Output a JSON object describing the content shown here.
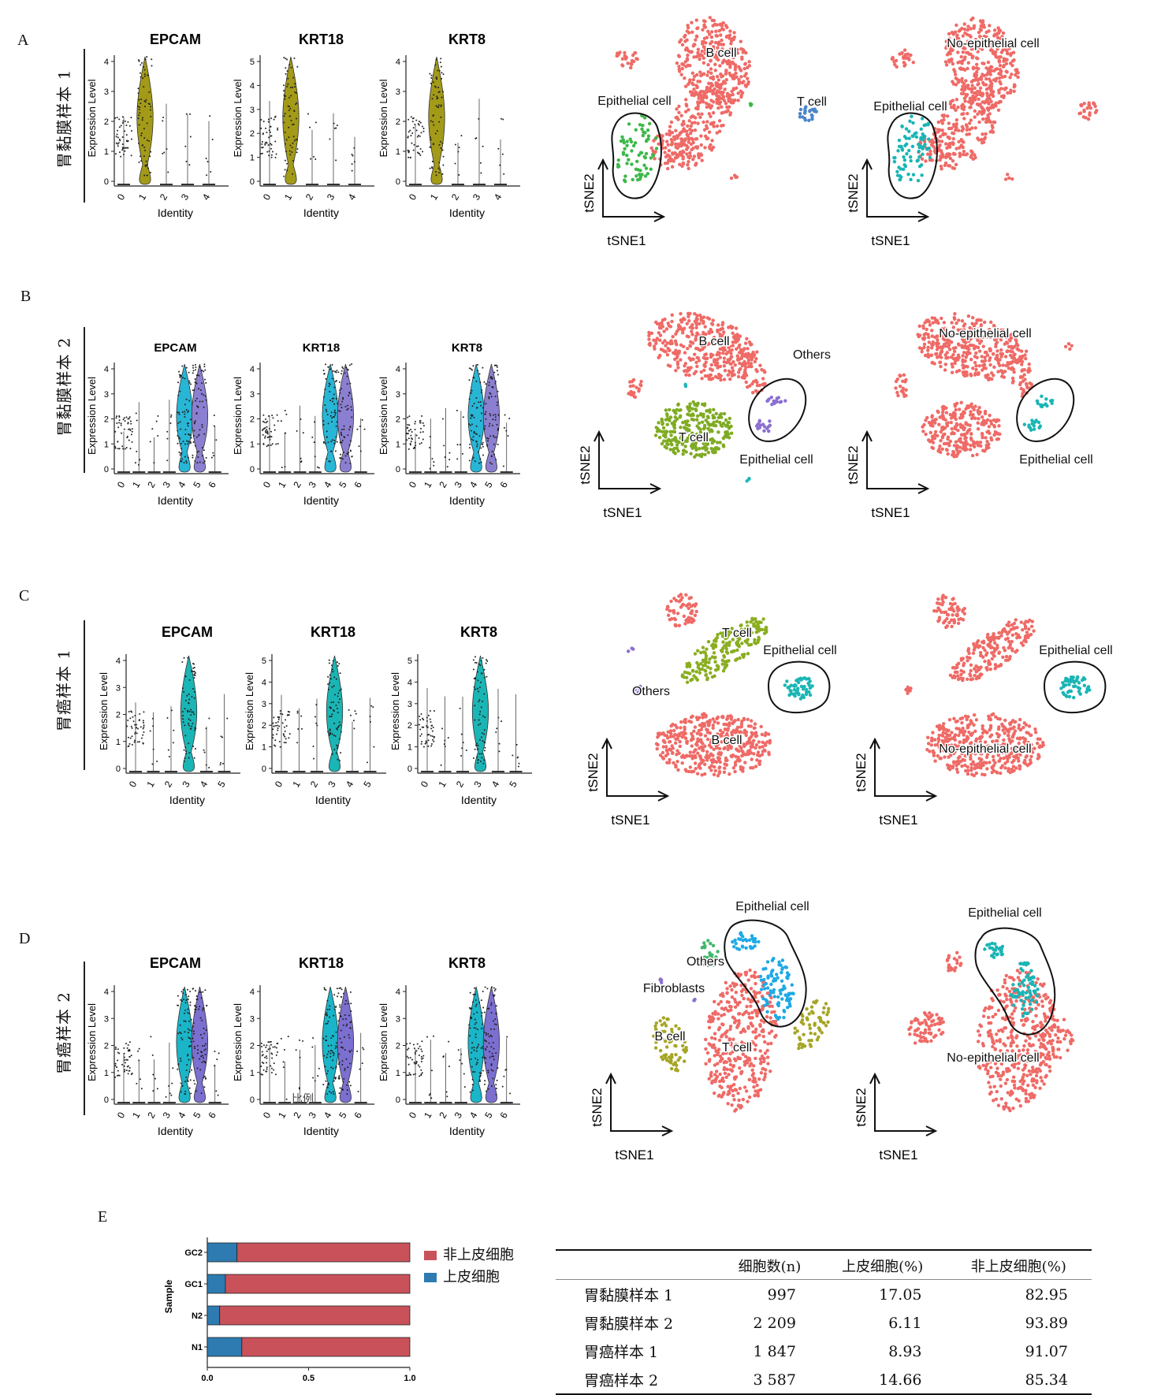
{
  "rows": [
    {
      "letter": "A",
      "label": "胃黏膜样本 1",
      "clusters": [
        "0",
        "1",
        "2",
        "3",
        "4"
      ],
      "color": "#a39a18",
      "highlight": [
        1
      ],
      "tsne_left": {
        "labels": [
          "B cell",
          "Epithelial cell",
          "T cell"
        ],
        "cluster_colors": {
          "b": "#ef6a66",
          "epi": "#3db84a",
          "t": "#4b86c9",
          "other": "#3db84a"
        }
      },
      "tsne_right": {
        "labels": [
          "No-epithelial cell",
          "Epithelial cell"
        ]
      }
    },
    {
      "letter": "B",
      "label": "胃黏膜样本 2",
      "clusters": [
        "0",
        "1",
        "2",
        "3",
        "4",
        "5",
        "6"
      ],
      "color": "#27b6d6",
      "color2": "#8b7fd1",
      "highlight": [
        4,
        5
      ],
      "tsne_left": {
        "labels": [
          "B cell",
          "Others",
          "T cell",
          "Epithelial cell"
        ],
        "cluster_colors": {
          "b": "#ef6a66",
          "epi": "#8b6fd0",
          "t": "#7fab23",
          "other": "#1fb7b7"
        }
      },
      "tsne_right": {
        "labels": [
          "No-epithelial cell",
          "Epithelial cell"
        ]
      }
    },
    {
      "letter": "C",
      "label": "胃癌样本 1",
      "clusters": [
        "0",
        "1",
        "2",
        "3",
        "4",
        "5"
      ],
      "color": "#1ab5b5",
      "highlight": [
        3
      ],
      "tsne_left": {
        "labels": [
          "T cell",
          "Epithelial cell",
          "Others",
          "B cell"
        ],
        "cluster_colors": {
          "b": "#ef6a66",
          "epi": "#1ab5b5",
          "t": "#8aae1f",
          "other": "#8b6fd0"
        }
      },
      "tsne_right": {
        "labels": [
          "Epithelial cell",
          "No-epithelial cell"
        ]
      }
    },
    {
      "letter": "D",
      "label": "胃癌样本 2",
      "clusters": [
        "0",
        "1",
        "2",
        "3",
        "4",
        "5",
        "6"
      ],
      "color": "#1ab5c8",
      "color2": "#7b6fd0",
      "highlight": [
        4,
        5
      ],
      "tsne_left": {
        "labels": [
          "Epithelial cell",
          "Others",
          "Fibroblasts",
          "B cell",
          "T cell"
        ],
        "cluster_colors": {
          "b": "#ef6a66",
          "epi": "#1ea9e6",
          "t": "#a6a526",
          "other": "#41b86a"
        }
      },
      "tsne_right": {
        "labels": [
          "Epithelial cell",
          "No-epithelial cell"
        ]
      }
    }
  ],
  "genes": [
    "EPCAM",
    "KRT18",
    "KRT8"
  ],
  "ylabel": "Expression Level",
  "xlabel": "Identity",
  "tsne_axes": {
    "x": "tSNE1",
    "y": "tSNE2"
  },
  "stray_text": "比例",
  "panel_e": {
    "letter": "E",
    "chart_data": {
      "type": "bar",
      "orientation": "horizontal-stacked",
      "categories": [
        "GC2",
        "GC1",
        "N2",
        "N1"
      ],
      "series": [
        {
          "name": "上皮细胞",
          "values": [
            0.1466,
            0.0893,
            0.0611,
            0.1705
          ]
        },
        {
          "name": "非上皮细胞",
          "values": [
            0.8534,
            0.9107,
            0.9389,
            0.8295
          ]
        }
      ],
      "ylabel": "Sample",
      "xticks": [
        "0.0",
        "0.5",
        "1.0"
      ],
      "xlim": [
        0,
        1
      ],
      "legend_position": "right",
      "colors": {
        "上皮细胞": "#2d7bb0",
        "非上皮细胞": "#c9525a"
      }
    },
    "legend": [
      "非上皮细胞",
      "上皮细胞"
    ],
    "table": {
      "headers": [
        "",
        "细胞数(n)",
        "上皮细胞(%)",
        "非上皮细胞(%)"
      ],
      "rows": [
        [
          "胃黏膜样本 1",
          "997",
          "17.05",
          "82.95"
        ],
        [
          "胃黏膜样本 2",
          "2 209",
          "6.11",
          "93.89"
        ],
        [
          "胃癌样本 1",
          "1 847",
          "8.93",
          "91.07"
        ],
        [
          "胃癌样本 2",
          "3 587",
          "14.66",
          "85.34"
        ]
      ]
    }
  }
}
